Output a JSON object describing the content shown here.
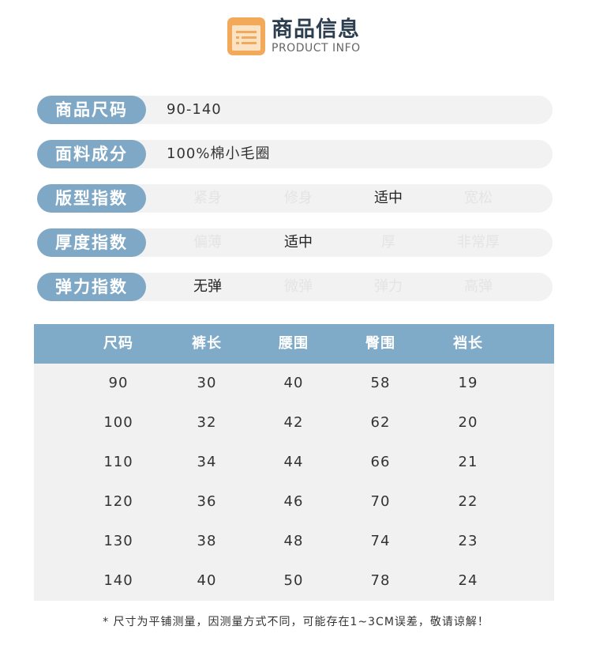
{
  "header": {
    "title": "商品信息",
    "subtitle": "PRODUCT INFO",
    "icon": "list-icon",
    "accent": "#f2a95a"
  },
  "specs": [
    {
      "label": "商品尺码",
      "value": "90-140"
    },
    {
      "label": "面料成分",
      "value": "100%棉小毛圈"
    }
  ],
  "indices": [
    {
      "label": "版型指数",
      "options": [
        "紧身",
        "修身",
        "适中",
        "宽松"
      ],
      "selected": 2
    },
    {
      "label": "厚度指数",
      "options": [
        "偏薄",
        "适中",
        "厚",
        "非常厚"
      ],
      "selected": 1
    },
    {
      "label": "弹力指数",
      "options": [
        "无弹",
        "微弹",
        "弹力",
        "高弹"
      ],
      "selected": 0
    }
  ],
  "table": {
    "headers": [
      "尺码",
      "裤长",
      "腰围",
      "臀围",
      "裆长"
    ],
    "rows": [
      [
        "90",
        "30",
        "40",
        "58",
        "19"
      ],
      [
        "100",
        "32",
        "42",
        "62",
        "20"
      ],
      [
        "110",
        "34",
        "44",
        "66",
        "21"
      ],
      [
        "120",
        "36",
        "46",
        "70",
        "22"
      ],
      [
        "130",
        "38",
        "48",
        "74",
        "23"
      ],
      [
        "140",
        "40",
        "50",
        "78",
        "24"
      ]
    ]
  },
  "note": "* 尺寸为平铺测量，因测量方式不同，可能存在1~3CM误差，敬请谅解！",
  "colors": {
    "label_bg": "#7fa8c6",
    "table_header": "#80abc8"
  }
}
